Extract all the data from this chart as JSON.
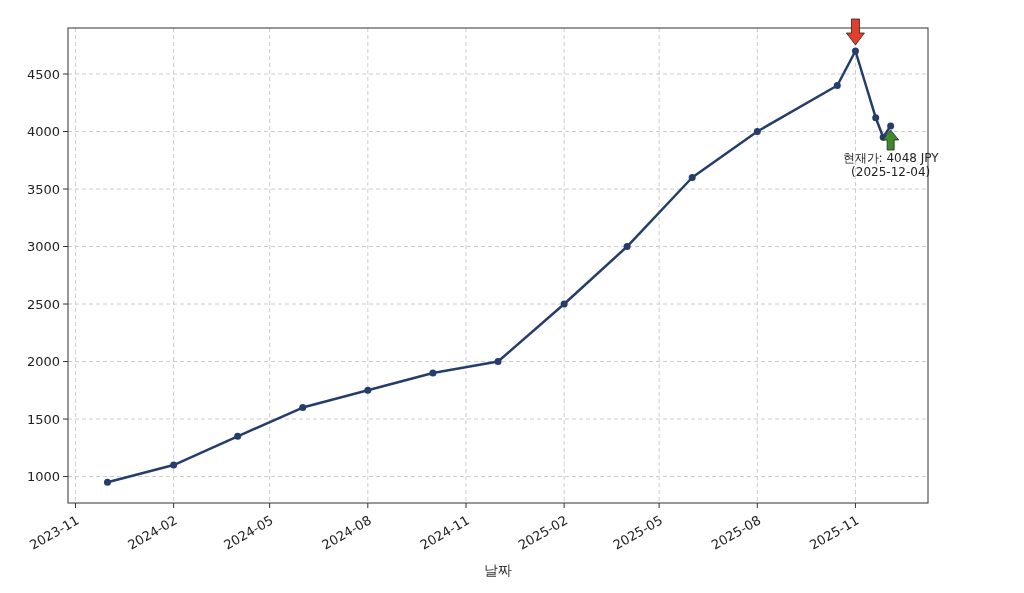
{
  "chart_data": {
    "type": "line",
    "xlabel": "날짜",
    "x": [
      "2023-12-01",
      "2024-02-01",
      "2024-04-01",
      "2024-06-01",
      "2024-08-01",
      "2024-10-01",
      "2024-12-01",
      "2025-02-01",
      "2025-04-01",
      "2025-06-01",
      "2025-08-01",
      "2025-10-15",
      "2025-11-01",
      "2025-11-20",
      "2025-11-27",
      "2025-12-04"
    ],
    "series": [
      {
        "color": "#253d6b",
        "values": [
          950,
          1100,
          1350,
          1600,
          1750,
          1900,
          2000,
          2500,
          3000,
          3600,
          4000,
          4400,
          4700,
          4120,
          3950,
          4048
        ]
      }
    ],
    "xlim": [
      "2023-10-25",
      "2026-01-08"
    ],
    "xticks": [
      "2023-11",
      "2024-02",
      "2024-05",
      "2024-08",
      "2024-11",
      "2025-02",
      "2025-05",
      "2025-08",
      "2025-11"
    ],
    "ylim": [
      770,
      4900
    ],
    "yticks": [
      1000,
      1500,
      2000,
      2500,
      3000,
      3500,
      4000,
      4500
    ],
    "grid": true,
    "marker": "circle",
    "line_style": "solid",
    "annotations": [
      {
        "text": "현재가: 4048 JPY\n(2025-12-04)",
        "x": "2025-12-04",
        "y": 4048
      }
    ]
  }
}
